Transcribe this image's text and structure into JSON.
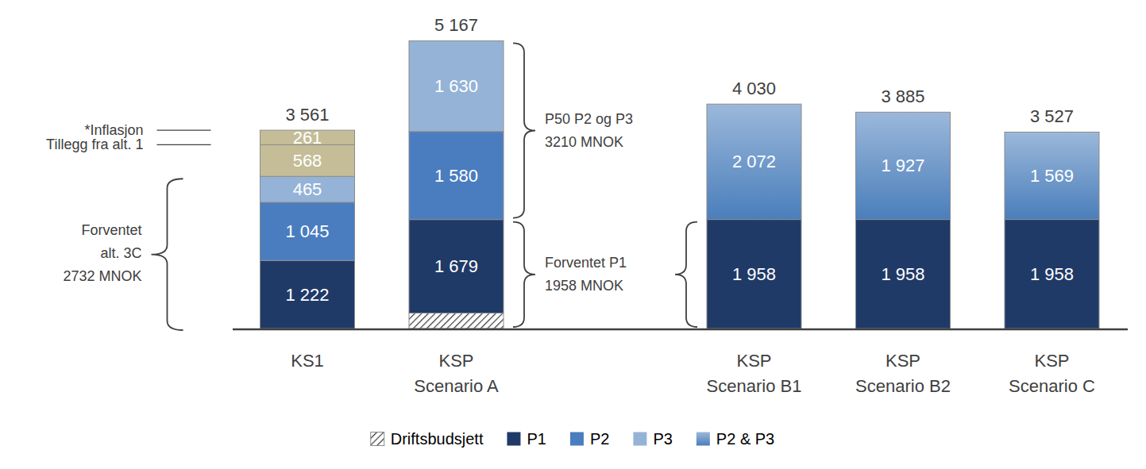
{
  "chart_data": {
    "type": "bar",
    "stacked": true,
    "data_labels": true,
    "tick_labels": "x",
    "legend": "bottom",
    "categories": [
      "KS1",
      "KSP Scenario A",
      null,
      "KSP Scenario B1",
      "KSP Scenario B2",
      "KSP Scenario C"
    ],
    "ylim": [
      0,
      5500
    ],
    "series": [
      {
        "name": "Driftsbudsjett",
        "color": "#404040",
        "values": [
          null,
          278,
          null,
          null,
          null,
          null
        ],
        "value_labels": [
          null,
          null,
          null,
          null,
          null,
          null
        ]
      },
      {
        "name": "P1",
        "color": "#203a68",
        "values": [
          1222,
          1679,
          null,
          1958,
          1958,
          1958
        ],
        "value_labels": [
          "1 222",
          "1 679",
          null,
          "1 958",
          "1 958",
          "1 958"
        ]
      },
      {
        "name": "P2",
        "color": "#4a7dbf",
        "values": [
          1045,
          1580,
          null,
          null,
          null,
          null
        ],
        "value_labels": [
          "1 045",
          "1 580",
          null,
          null,
          null,
          null
        ]
      },
      {
        "name": "P3",
        "color": "#95b3d7",
        "values": [
          465,
          1630,
          null,
          null,
          null,
          null
        ],
        "value_labels": [
          "465",
          "1 630",
          null,
          null,
          null,
          null
        ]
      },
      {
        "name": "P2 & P3",
        "color": "#4a7ebb",
        "values": [
          null,
          null,
          null,
          2072,
          1927,
          1569
        ],
        "value_labels": [
          null,
          null,
          null,
          "2 072",
          "1 927",
          "1 569"
        ]
      }
    ],
    "side_series": [
      {
        "name": "Tillegg fra alt. 1",
        "color": "#c4bd97",
        "values": [
          568,
          null,
          null,
          null,
          null,
          null
        ],
        "value_labels": [
          "568",
          null,
          null,
          null,
          null,
          null
        ]
      },
      {
        "name": "*Inflasjon",
        "color": "#c4bd97",
        "values": [
          261,
          null,
          null,
          null,
          null,
          null
        ],
        "value_labels": [
          "261",
          null,
          null,
          null,
          null,
          null
        ]
      }
    ],
    "totals": [
      3561,
      5167,
      null,
      4030,
      3885,
      3527
    ],
    "total_labels": [
      "3 561",
      "5 167",
      null,
      "4 030",
      "3 885",
      "3 527"
    ],
    "annotations": [
      {
        "lines": [
          "Forventet",
          "alt. 3C",
          "2732 MNOK"
        ],
        "categories": [
          0
        ],
        "range": [
          0,
          2732
        ]
      },
      {
        "lines": [
          "P50 P2 og P3",
          "3210 MNOK"
        ],
        "categories": [
          1
        ],
        "range": [
          1958,
          5167
        ]
      },
      {
        "lines": [
          "Forventet P1",
          "1958 MNOK"
        ],
        "categories": [
          1,
          3
        ],
        "range": [
          0,
          1958
        ]
      }
    ]
  }
}
